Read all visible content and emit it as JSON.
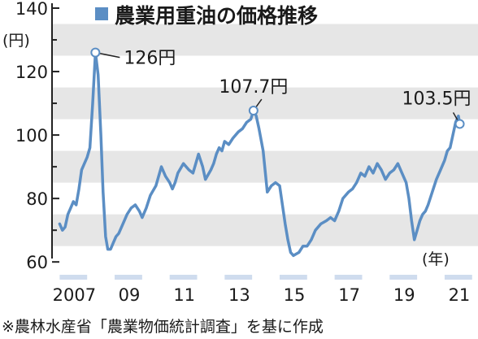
{
  "chart_data": {
    "type": "line",
    "title": "農業用重油の価格推移",
    "ylabel": "(円)",
    "xlabel": "(年)",
    "source": "※農林水産省「農業物価統計調査」を基に作成",
    "ylim": [
      58,
      140
    ],
    "xlim": [
      2006.9,
      2021.8
    ],
    "y_ticks": [
      60,
      80,
      100,
      120,
      140
    ],
    "x_ticks": [
      {
        "value": 2007,
        "label": "2007"
      },
      {
        "value": 2009,
        "label": "09"
      },
      {
        "value": 2011,
        "label": "11"
      },
      {
        "value": 2013,
        "label": "13"
      },
      {
        "value": 2015,
        "label": "15"
      },
      {
        "value": 2017,
        "label": "17"
      },
      {
        "value": 2019,
        "label": "19"
      },
      {
        "value": 2021,
        "label": "21"
      }
    ],
    "grid": "horizontal bands",
    "legend": "top-left",
    "colors": {
      "line": "#5b8ec4",
      "band": "#e6e6e6",
      "marker_fill": "#ffffff"
    },
    "series": [
      {
        "name": "",
        "x": [
          2007.0,
          2007.1,
          2007.2,
          2007.3,
          2007.4,
          2007.5,
          2007.6,
          2007.7,
          2007.8,
          2007.9,
          2008.0,
          2008.1,
          2008.2,
          2008.3,
          2008.4,
          2008.5,
          2008.58,
          2008.67,
          2008.75,
          2008.85,
          2008.95,
          2009.05,
          2009.15,
          2009.3,
          2009.45,
          2009.6,
          2009.75,
          2009.9,
          2010.0,
          2010.15,
          2010.3,
          2010.5,
          2010.7,
          2010.85,
          2011.0,
          2011.1,
          2011.2,
          2011.3,
          2011.5,
          2011.7,
          2011.85,
          2011.95,
          2012.05,
          2012.2,
          2012.3,
          2012.5,
          2012.6,
          2012.7,
          2012.8,
          2012.9,
          2013.0,
          2013.15,
          2013.3,
          2013.5,
          2013.65,
          2013.8,
          2013.95,
          2014.05,
          2014.15,
          2014.25,
          2014.4,
          2014.55,
          2014.7,
          2014.85,
          2015.0,
          2015.1,
          2015.2,
          2015.3,
          2015.4,
          2015.5,
          2015.7,
          2015.85,
          2016.0,
          2016.15,
          2016.3,
          2016.5,
          2016.7,
          2016.85,
          2017.0,
          2017.15,
          2017.3,
          2017.5,
          2017.65,
          2017.8,
          2017.95,
          2018.1,
          2018.25,
          2018.4,
          2018.55,
          2018.7,
          2018.85,
          2019.0,
          2019.15,
          2019.3,
          2019.45,
          2019.6,
          2019.7,
          2019.8,
          2019.9,
          2020.0,
          2020.1,
          2020.2,
          2020.3,
          2020.4,
          2020.55,
          2020.7,
          2020.85,
          2021.0,
          2021.1,
          2021.2,
          2021.3,
          2021.4,
          2021.5,
          2021.55
        ],
        "values": [
          72,
          70,
          71,
          75,
          77,
          79,
          78,
          83,
          89,
          91,
          93,
          96,
          110,
          126,
          119,
          100,
          82,
          68,
          64,
          64,
          66,
          68,
          69,
          72,
          75,
          77,
          78,
          76,
          74,
          77,
          81,
          84,
          90,
          87,
          85,
          83,
          85,
          88,
          91,
          89,
          88,
          91,
          94,
          90,
          86,
          89,
          91,
          94,
          96,
          95,
          98,
          97,
          99,
          101,
          102,
          104,
          105,
          107.7,
          106,
          102,
          95,
          82,
          84,
          85,
          84,
          78,
          72,
          67,
          63,
          62,
          63,
          65,
          65,
          67,
          70,
          72,
          73,
          74,
          73,
          76,
          80,
          82,
          83,
          85,
          88,
          87,
          90,
          88,
          91,
          89,
          86,
          88,
          89,
          91,
          88,
          85,
          80,
          73,
          67,
          70,
          73,
          75,
          76,
          78,
          82,
          86,
          89,
          92,
          95,
          96,
          100,
          104,
          106,
          103.5
        ]
      }
    ],
    "annotations": [
      {
        "x": 2008.3,
        "y": 126,
        "text": "126円"
      },
      {
        "x": 2014.05,
        "y": 107.7,
        "text": "107.7円"
      },
      {
        "x": 2021.55,
        "y": 103.5,
        "text": "103.5円"
      }
    ]
  }
}
